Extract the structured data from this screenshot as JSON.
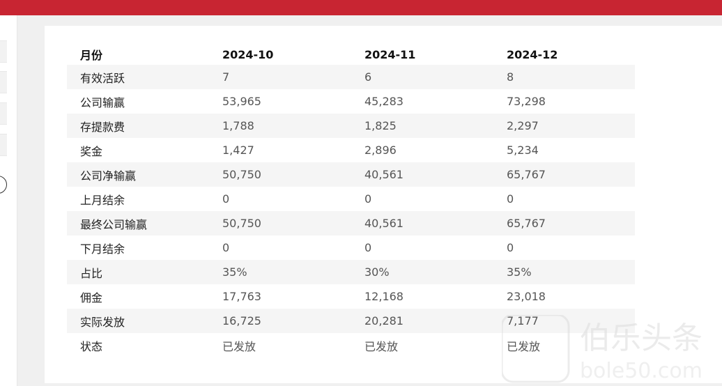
{
  "table": {
    "header": [
      "月份",
      "2024-10",
      "2024-11",
      "2024-12"
    ],
    "rows": [
      {
        "label": "有效活跃",
        "values": [
          "7",
          "6",
          "8"
        ]
      },
      {
        "label": "公司输赢",
        "values": [
          "53,965",
          "45,283",
          "73,298"
        ]
      },
      {
        "label": "存提款费",
        "values": [
          "1,788",
          "1,825",
          "2,297"
        ]
      },
      {
        "label": "奖金",
        "values": [
          "1,427",
          "2,896",
          "5,234"
        ]
      },
      {
        "label": "公司净输赢",
        "values": [
          "50,750",
          "40,561",
          "65,767"
        ]
      },
      {
        "label": "上月结余",
        "values": [
          "0",
          "0",
          "0"
        ]
      },
      {
        "label": "最终公司输赢",
        "values": [
          "50,750",
          "40,561",
          "65,767"
        ]
      },
      {
        "label": "下月结余",
        "values": [
          "0",
          "0",
          "0"
        ]
      },
      {
        "label": "占比",
        "values": [
          "35%",
          "30%",
          "35%"
        ]
      },
      {
        "label": "佣金",
        "values": [
          "17,763",
          "12,168",
          "23,018"
        ]
      },
      {
        "label": "实际发放",
        "values": [
          "16,725",
          "20,281",
          "7,177"
        ]
      },
      {
        "label": "状态",
        "values": [
          "已发放",
          "已发放",
          "已发放"
        ]
      }
    ]
  },
  "watermark": {
    "text": "伯乐头条",
    "domain": "bole50.com"
  },
  "colors": {
    "topbar": "#c82532",
    "row_alt": "#f5f5f5"
  }
}
